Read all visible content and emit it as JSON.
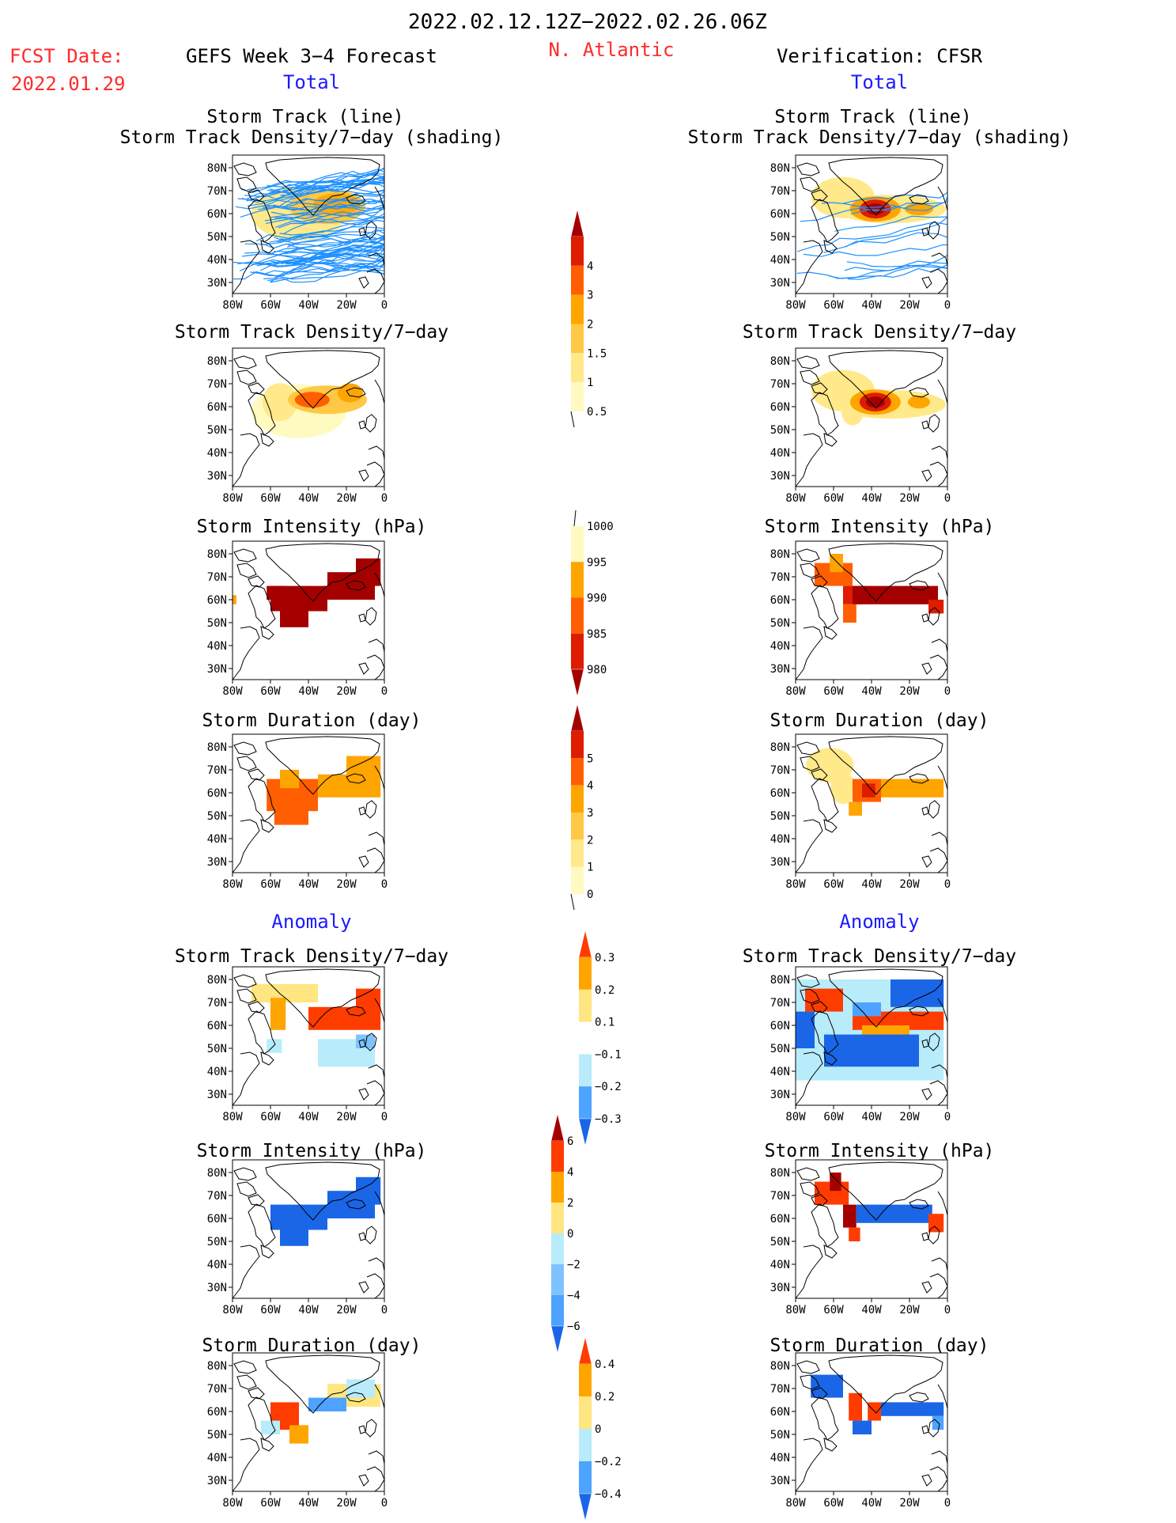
{
  "header": {
    "period": "2022.02.12.12Z−2022.02.26.06Z",
    "fcst_label": "FCST Date:",
    "fcst_date": "2022.01.29",
    "model": "GEFS Week 3−4 Forecast",
    "region": "N. Atlantic",
    "verification": "Verification: CFSR"
  },
  "colors": {
    "red": "#ff2a2a",
    "blue": "#1a1aff",
    "black": "#000000"
  },
  "sections": {
    "total": "Total",
    "anomaly": "Anomaly"
  },
  "axes": {
    "lat_labels": [
      "80N",
      "70N",
      "60N",
      "50N",
      "40N",
      "30N"
    ],
    "lon_labels": [
      "80W",
      "60W",
      "40W",
      "20W",
      "0"
    ]
  },
  "panel_titles": {
    "track_line": "Storm Track (line)",
    "track_shading": "Storm Track Density/7−day (shading)",
    "density": "Storm Track Density/7−day",
    "intensity": "Storm Intensity (hPa)",
    "duration": "Storm Duration (day)"
  },
  "colorbars": [
    {
      "id": "density_total",
      "labels": [
        "4",
        "3",
        "2",
        "1.5",
        "1",
        "0.5"
      ],
      "colors": [
        "#a50000",
        "#dd1c00",
        "#ff5f00",
        "#ffa500",
        "#ffc845",
        "#ffe98a",
        "#fffac0"
      ],
      "arrow_top": true,
      "arrow_bottom": false,
      "bottom_line": true
    },
    {
      "id": "intensity_total",
      "labels": [
        "1000",
        "995",
        "990",
        "985",
        "980"
      ],
      "colors": [
        "#fffac0",
        "#ffa500",
        "#ff5f00",
        "#dd1c00",
        "#a50000"
      ],
      "arrow_top": false,
      "arrow_bottom": true,
      "top_line": true
    },
    {
      "id": "duration_total",
      "labels": [
        "5",
        "4",
        "3",
        "2",
        "1",
        "0"
      ],
      "colors": [
        "#a50000",
        "#dd1c00",
        "#ff5f00",
        "#ffa500",
        "#ffc845",
        "#ffe98a",
        "#fffac0"
      ],
      "arrow_top": true,
      "arrow_bottom": false,
      "bottom_line": true
    },
    {
      "id": "density_anom",
      "labels": [
        "0.3",
        "0.2",
        "0.1",
        "−0.1",
        "−0.2",
        "−0.3"
      ],
      "colors": [
        "#ff3c00",
        "#ffa500",
        "#ffe680",
        "#ffffff",
        "#b8ecfa",
        "#4da3ff",
        "#1a66e6"
      ],
      "arrow_top": true,
      "arrow_bottom": true
    },
    {
      "id": "intensity_anom",
      "labels": [
        "6",
        "4",
        "2",
        "0",
        "−2",
        "−4",
        "−6"
      ],
      "colors": [
        "#a50000",
        "#ff3c00",
        "#ffa500",
        "#ffe680",
        "#b8ecfa",
        "#7ec3ff",
        "#4da3ff",
        "#1a66e6"
      ],
      "arrow_top": true,
      "arrow_bottom": true
    },
    {
      "id": "duration_anom",
      "labels": [
        "0.4",
        "0.2",
        "0",
        "−0.2",
        "−0.4"
      ],
      "colors": [
        "#ff3c00",
        "#ffa500",
        "#ffe680",
        "#b8ecfa",
        "#4da3ff",
        "#1a66e6"
      ],
      "arrow_top": true,
      "arrow_bottom": true
    }
  ],
  "chart_data": {
    "type": "heatmap",
    "lon_range": [
      -80,
      0
    ],
    "lat_range": [
      25,
      85
    ],
    "panels": [
      {
        "id": "fcst_track",
        "variable": "Storm Track (line) / Storm Track Density/7-day (shading)",
        "source": "GEFS",
        "field": "total",
        "regions": [
          {
            "lon": -30,
            "lat": 63,
            "value": 1.5
          },
          {
            "lon": -45,
            "lat": 60,
            "value": 1.0
          }
        ]
      },
      {
        "id": "obs_track",
        "variable": "Storm Track (line) / Storm Track Density/7-day (shading)",
        "source": "CFSR",
        "field": "total",
        "regions": [
          {
            "lon": -38,
            "lat": 62,
            "value": 4
          },
          {
            "lon": -20,
            "lat": 62,
            "value": 1.5
          }
        ]
      },
      {
        "id": "fcst_density",
        "variable": "Storm Track Density/7-day",
        "source": "GEFS",
        "field": "total",
        "regions": [
          {
            "lon": -38,
            "lat": 63,
            "value": 2
          },
          {
            "lon": -20,
            "lat": 64,
            "value": 1.5
          },
          {
            "lon": -55,
            "lat": 62,
            "value": 1
          }
        ]
      },
      {
        "id": "obs_density",
        "variable": "Storm Track Density/7-day",
        "source": "CFSR",
        "field": "total",
        "regions": [
          {
            "lon": -38,
            "lat": 62,
            "value": 4
          },
          {
            "lon": -20,
            "lat": 62,
            "value": 1.5
          },
          {
            "lon": -60,
            "lat": 66,
            "value": 1
          }
        ]
      },
      {
        "id": "fcst_intensity",
        "variable": "Storm Intensity (hPa)",
        "source": "GEFS",
        "field": "total",
        "regions": [
          {
            "lon": -35,
            "lat": 60,
            "value": 980
          }
        ]
      },
      {
        "id": "obs_intensity",
        "variable": "Storm Intensity (hPa)",
        "source": "CFSR",
        "field": "total",
        "regions": [
          {
            "lon": -25,
            "lat": 61,
            "value": 980
          },
          {
            "lon": -60,
            "lat": 69,
            "value": 990
          }
        ]
      },
      {
        "id": "fcst_duration",
        "variable": "Storm Duration (day)",
        "source": "GEFS",
        "field": "total",
        "regions": [
          {
            "lon": -40,
            "lat": 60,
            "value": 3
          },
          {
            "lon": -15,
            "lat": 68,
            "value": 2
          }
        ]
      },
      {
        "id": "obs_duration",
        "variable": "Storm Duration (day)",
        "source": "CFSR",
        "field": "total",
        "regions": [
          {
            "lon": -40,
            "lat": 61,
            "value": 4
          },
          {
            "lon": -20,
            "lat": 62,
            "value": 2
          },
          {
            "lon": -60,
            "lat": 70,
            "value": 1
          }
        ]
      },
      {
        "id": "fcst_density_anom",
        "variable": "Storm Track Density/7-day",
        "source": "GEFS",
        "field": "anomaly",
        "regions": [
          {
            "lon": -18,
            "lat": 65,
            "value": 0.3
          },
          {
            "lon": -55,
            "lat": 70,
            "value": 0.1
          },
          {
            "lon": -25,
            "lat": 48,
            "value": -0.1
          }
        ]
      },
      {
        "id": "obs_density_anom",
        "variable": "Storm Track Density/7-day",
        "source": "CFSR",
        "field": "anomaly",
        "regions": [
          {
            "lon": -30,
            "lat": 62,
            "value": 0.3
          },
          {
            "lon": -50,
            "lat": 45,
            "value": -0.3
          },
          {
            "lon": -20,
            "lat": 72,
            "value": -0.3
          }
        ]
      },
      {
        "id": "fcst_intensity_anom",
        "variable": "Storm Intensity (hPa)",
        "source": "GEFS",
        "field": "anomaly",
        "regions": [
          {
            "lon": -35,
            "lat": 62,
            "value": -6
          }
        ]
      },
      {
        "id": "obs_intensity_anom",
        "variable": "Storm Intensity (hPa)",
        "source": "CFSR",
        "field": "anomaly",
        "regions": [
          {
            "lon": -25,
            "lat": 61,
            "value": -6
          },
          {
            "lon": -60,
            "lat": 68,
            "value": 6
          }
        ]
      },
      {
        "id": "fcst_duration_anom",
        "variable": "Storm Duration (day)",
        "source": "GEFS",
        "field": "anomaly",
        "regions": [
          {
            "lon": -45,
            "lat": 55,
            "value": 0.4
          },
          {
            "lon": -25,
            "lat": 65,
            "value": -0.2
          }
        ]
      },
      {
        "id": "obs_duration_anom",
        "variable": "Storm Duration (day)",
        "source": "CFSR",
        "field": "anomaly",
        "regions": [
          {
            "lon": -25,
            "lat": 61,
            "value": -0.4
          },
          {
            "lon": -40,
            "lat": 58,
            "value": 0.4
          }
        ]
      }
    ]
  }
}
